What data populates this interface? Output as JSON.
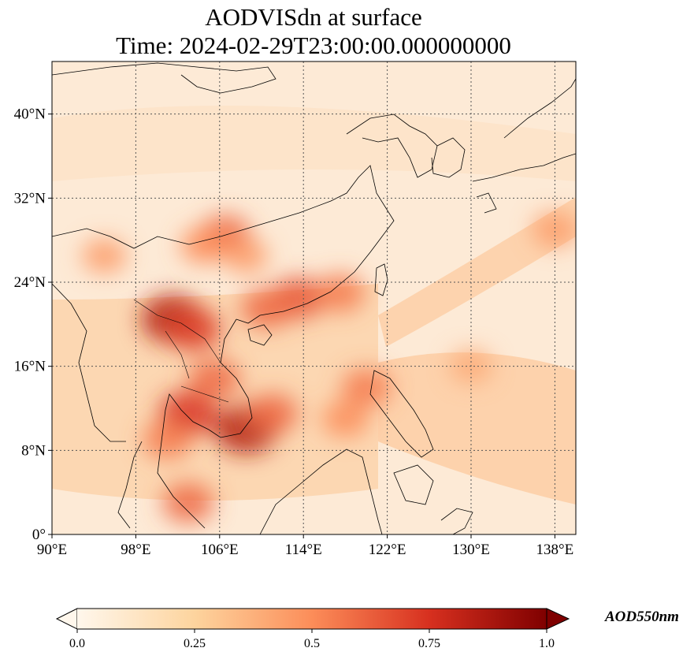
{
  "chart_data": {
    "type": "heatmap",
    "title_line1": "AODVISdn at surface",
    "title_line2": "Time: 2024-02-29T23:00:00.000000000",
    "variable": "AODVISdn",
    "colorbar_label": "AOD550nm",
    "colormap": "OrRd",
    "colorbar_range": [
      0.0,
      1.0
    ],
    "colorbar_ticks": [
      "0.0",
      "0.25",
      "0.5",
      "0.75",
      "1.0"
    ],
    "colorbar_extend": "both",
    "xlim_deg": [
      90,
      140
    ],
    "ylim_deg": [
      0,
      45
    ],
    "x_ticks": [
      {
        "value": 90,
        "label": "90°E"
      },
      {
        "value": 98,
        "label": "98°E"
      },
      {
        "value": 106,
        "label": "106°E"
      },
      {
        "value": 114,
        "label": "114°E"
      },
      {
        "value": 122,
        "label": "122°E"
      },
      {
        "value": 130,
        "label": "130°E"
      },
      {
        "value": 138,
        "label": "138°E"
      }
    ],
    "y_ticks": [
      {
        "value": 0,
        "label": "0°"
      },
      {
        "value": 8,
        "label": "8°N"
      },
      {
        "value": 16,
        "label": "16°N"
      },
      {
        "value": 24,
        "label": "24°N"
      },
      {
        "value": 32,
        "label": "32°N"
      },
      {
        "value": 40,
        "label": "40°N"
      }
    ],
    "grid": true,
    "aerosol_hotspots": [
      {
        "lon": 101.5,
        "lat": 20.5,
        "value": 0.85
      },
      {
        "lon": 103.5,
        "lat": 19.5,
        "value": 0.7
      },
      {
        "lon": 106.5,
        "lat": 28.5,
        "value": 0.6
      },
      {
        "lon": 104.5,
        "lat": 27.5,
        "value": 0.5
      },
      {
        "lon": 108.5,
        "lat": 26.5,
        "value": 0.45
      },
      {
        "lon": 113.5,
        "lat": 22.5,
        "value": 0.65
      },
      {
        "lon": 117.5,
        "lat": 23.0,
        "value": 0.55
      },
      {
        "lon": 110.5,
        "lat": 21.5,
        "value": 0.6
      },
      {
        "lon": 108.5,
        "lat": 10.0,
        "value": 0.85
      },
      {
        "lon": 111.0,
        "lat": 11.5,
        "value": 0.6
      },
      {
        "lon": 103.0,
        "lat": 11.5,
        "value": 0.75
      },
      {
        "lon": 105.5,
        "lat": 14.8,
        "value": 0.6
      },
      {
        "lon": 101.0,
        "lat": 9.0,
        "value": 0.55
      },
      {
        "lon": 103.0,
        "lat": 3.0,
        "value": 0.6
      },
      {
        "lon": 118.0,
        "lat": 11.0,
        "value": 0.5
      },
      {
        "lon": 120.0,
        "lat": 14.0,
        "value": 0.55
      },
      {
        "lon": 130.0,
        "lat": 16.0,
        "value": 0.4
      },
      {
        "lon": 138.0,
        "lat": 29.0,
        "value": 0.45
      },
      {
        "lon": 95.0,
        "lat": 26.5,
        "value": 0.45
      }
    ]
  }
}
